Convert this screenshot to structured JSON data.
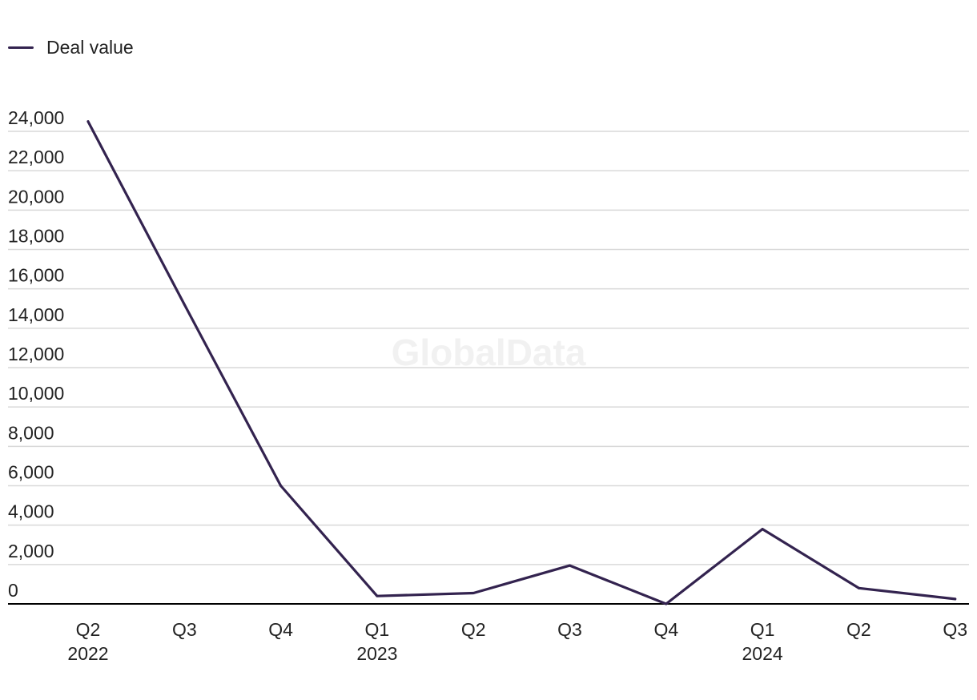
{
  "chart_data": {
    "type": "line",
    "legend": {
      "placement": "top-left",
      "entries": [
        "Deal value"
      ]
    },
    "watermark": "GlobalData",
    "categories": [
      {
        "quarter": "Q2",
        "year": "2022"
      },
      {
        "quarter": "Q3",
        "year": ""
      },
      {
        "quarter": "Q4",
        "year": ""
      },
      {
        "quarter": "Q1",
        "year": "2023"
      },
      {
        "quarter": "Q2",
        "year": ""
      },
      {
        "quarter": "Q3",
        "year": ""
      },
      {
        "quarter": "Q4",
        "year": ""
      },
      {
        "quarter": "Q1",
        "year": "2024"
      },
      {
        "quarter": "Q2",
        "year": ""
      },
      {
        "quarter": "Q3",
        "year": ""
      }
    ],
    "series": [
      {
        "name": "Deal value",
        "color": "#33234f",
        "values": [
          24500,
          15200,
          6000,
          400,
          550,
          1950,
          0,
          3800,
          800,
          250
        ]
      }
    ],
    "y_ticks": [
      "0",
      "2,000",
      "4,000",
      "6,000",
      "8,000",
      "10,000",
      "12,000",
      "14,000",
      "16,000",
      "18,000",
      "20,000",
      "22,000",
      "24,000"
    ],
    "ylim": [
      0,
      24000
    ],
    "grid": true,
    "colors": {
      "grid": "#d9d9d9",
      "axis": "#000000"
    }
  }
}
